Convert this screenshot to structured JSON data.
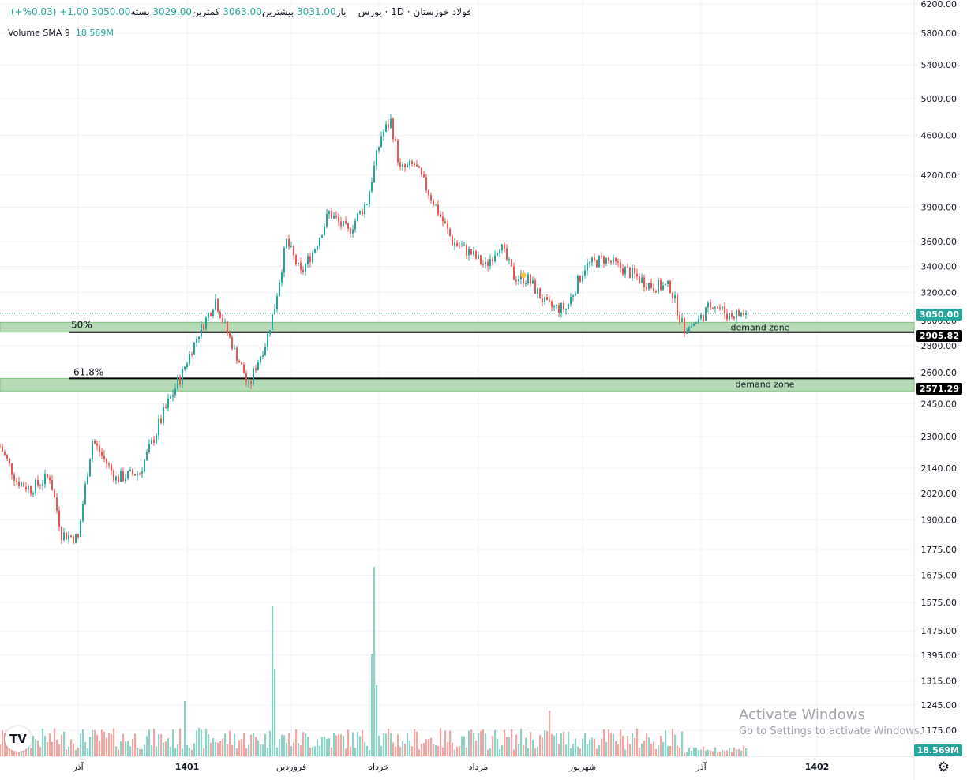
{
  "header": {
    "symbol": "فولاد خوزستان",
    "timeframe": "1D",
    "exchange": "بورس",
    "open_label": "باز",
    "open": "3031.00",
    "high_label": "بیشترین",
    "high": "3063.00",
    "low_label": "کمترین",
    "low": "3029.00",
    "close_label": "بسته",
    "close": "3050.00",
    "change": "1.00+ (0.03%+)",
    "volume_label": "Volume SMA 9",
    "volume_value": "18.569M"
  },
  "price_axis_labels": [
    "6200.00",
    "5800.00",
    "5400.00",
    "5000.00",
    "4600.00",
    "4200.00",
    "3900.00",
    "3600.00",
    "3400.00",
    "3200.00",
    "3000.00",
    "2800.00",
    "2600.00",
    "2450.00",
    "2300.00",
    "2140.00",
    "2020.00",
    "1900.00",
    "1775.00",
    "1675.00",
    "1575.00",
    "1475.00",
    "1395.00",
    "1315.00",
    "1245.00",
    "1175.00"
  ],
  "time_axis_labels": [
    "آذر",
    "1401",
    "فروردین",
    "خرداد",
    "مرداد",
    "شهریور",
    "آذر",
    "1402"
  ],
  "last_price_box": "3050.00",
  "level_boxes": [
    "2905.82",
    "2571.29"
  ],
  "volume_box": "18.569M",
  "fib_labels": [
    "50%",
    "61.8%"
  ],
  "zone_labels": [
    "demand zone",
    "demand zone"
  ],
  "watermark": {
    "line1": "Activate Windows",
    "line2": "Go to Settings to activate Windows."
  },
  "colors": {
    "up": "#26a69a",
    "down": "#ef5350",
    "zone": "#b7dbb7",
    "zone_border": "#7fbf7f",
    "level": "#000000"
  },
  "chart_data": {
    "type": "candlestick",
    "title": "فولاد خوزستان",
    "y_scale": "log",
    "ylim": [
      1175,
      6200
    ],
    "x_range_sessions": [
      1,
      316
    ],
    "volume_label": "Volume SMA 9",
    "horizontal_levels": [
      {
        "label": "50%",
        "value": 2905.82
      },
      {
        "label": "61.8%",
        "value": 2571.29
      }
    ],
    "demand_zones": [
      {
        "label": "demand zone",
        "low": 2905.82,
        "high": 2985
      },
      {
        "label": "demand zone",
        "low": 2510,
        "high": 2571.29
      }
    ],
    "month_markers": [
      {
        "label": "آذر",
        "session": 34
      },
      {
        "label": "1401",
        "session": 80
      },
      {
        "label": "فروردین",
        "session": 124
      },
      {
        "label": "خرداد",
        "session": 161
      },
      {
        "label": "مرداد",
        "session": 203
      },
      {
        "label": "شهریور",
        "session": 247
      },
      {
        "label": "آذر",
        "session": 297
      },
      {
        "label": "1402",
        "session": 346
      }
    ],
    "price_path": [
      {
        "session": 1,
        "close": 2250
      },
      {
        "session": 8,
        "close": 2080
      },
      {
        "session": 14,
        "close": 2040
      },
      {
        "session": 22,
        "close": 2100
      },
      {
        "session": 27,
        "close": 1840
      },
      {
        "session": 34,
        "close": 1820
      },
      {
        "session": 40,
        "close": 2280
      },
      {
        "session": 50,
        "close": 2090
      },
      {
        "session": 60,
        "close": 2120
      },
      {
        "session": 68,
        "close": 2350
      },
      {
        "session": 78,
        "close": 2600
      },
      {
        "session": 85,
        "close": 2900
      },
      {
        "session": 92,
        "close": 3150
      },
      {
        "session": 100,
        "close": 2760
      },
      {
        "session": 106,
        "close": 2520
      },
      {
        "session": 113,
        "close": 2810
      },
      {
        "session": 117,
        "close": 3100
      },
      {
        "session": 122,
        "close": 3600
      },
      {
        "session": 128,
        "close": 3340
      },
      {
        "session": 134,
        "close": 3550
      },
      {
        "session": 140,
        "close": 3850
      },
      {
        "session": 148,
        "close": 3680
      },
      {
        "session": 156,
        "close": 3950
      },
      {
        "session": 162,
        "close": 4600
      },
      {
        "session": 166,
        "close": 4750
      },
      {
        "session": 170,
        "close": 4250
      },
      {
        "session": 176,
        "close": 4300
      },
      {
        "session": 184,
        "close": 3950
      },
      {
        "session": 192,
        "close": 3600
      },
      {
        "session": 200,
        "close": 3500
      },
      {
        "session": 206,
        "close": 3400
      },
      {
        "session": 212,
        "close": 3580
      },
      {
        "session": 218,
        "close": 3320
      },
      {
        "session": 224,
        "close": 3300
      },
      {
        "session": 232,
        "close": 3100
      },
      {
        "session": 240,
        "close": 3080
      },
      {
        "session": 248,
        "close": 3400
      },
      {
        "session": 256,
        "close": 3460
      },
      {
        "session": 266,
        "close": 3360
      },
      {
        "session": 276,
        "close": 3250
      },
      {
        "session": 284,
        "close": 3240
      },
      {
        "session": 290,
        "close": 2920
      },
      {
        "session": 296,
        "close": 3000
      },
      {
        "session": 302,
        "close": 3130
      },
      {
        "session": 308,
        "close": 3040
      },
      {
        "session": 316,
        "close": 3050
      }
    ],
    "volume_peaks": [
      {
        "session": 116,
        "volume": "high"
      },
      {
        "session": 159,
        "volume": "highest"
      }
    ]
  }
}
